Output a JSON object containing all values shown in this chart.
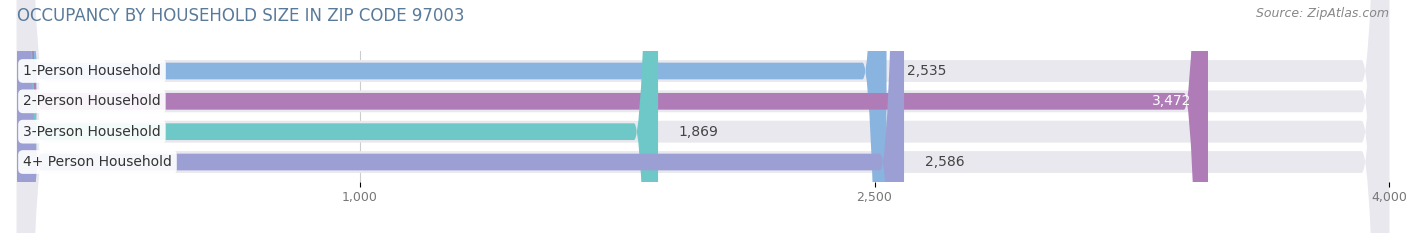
{
  "title": "OCCUPANCY BY HOUSEHOLD SIZE IN ZIP CODE 97003",
  "source": "Source: ZipAtlas.com",
  "categories": [
    "1-Person Household",
    "2-Person Household",
    "3-Person Household",
    "4+ Person Household"
  ],
  "values": [
    2535,
    3472,
    1869,
    2586
  ],
  "bar_colors": [
    "#8ab4e0",
    "#b07cb8",
    "#6ec8c8",
    "#9b9fd4"
  ],
  "value_inside": [
    false,
    true,
    false,
    false
  ],
  "xlim": [
    0,
    4000
  ],
  "xticks": [
    1000,
    2500,
    4000
  ],
  "xtick_labels": [
    "1,000",
    "2,500",
    "4,000"
  ],
  "background_color": "#ffffff",
  "bar_bg_color": "#e8e8ee",
  "title_fontsize": 12,
  "source_fontsize": 9,
  "label_fontsize": 10,
  "tick_fontsize": 9,
  "category_fontsize": 10
}
